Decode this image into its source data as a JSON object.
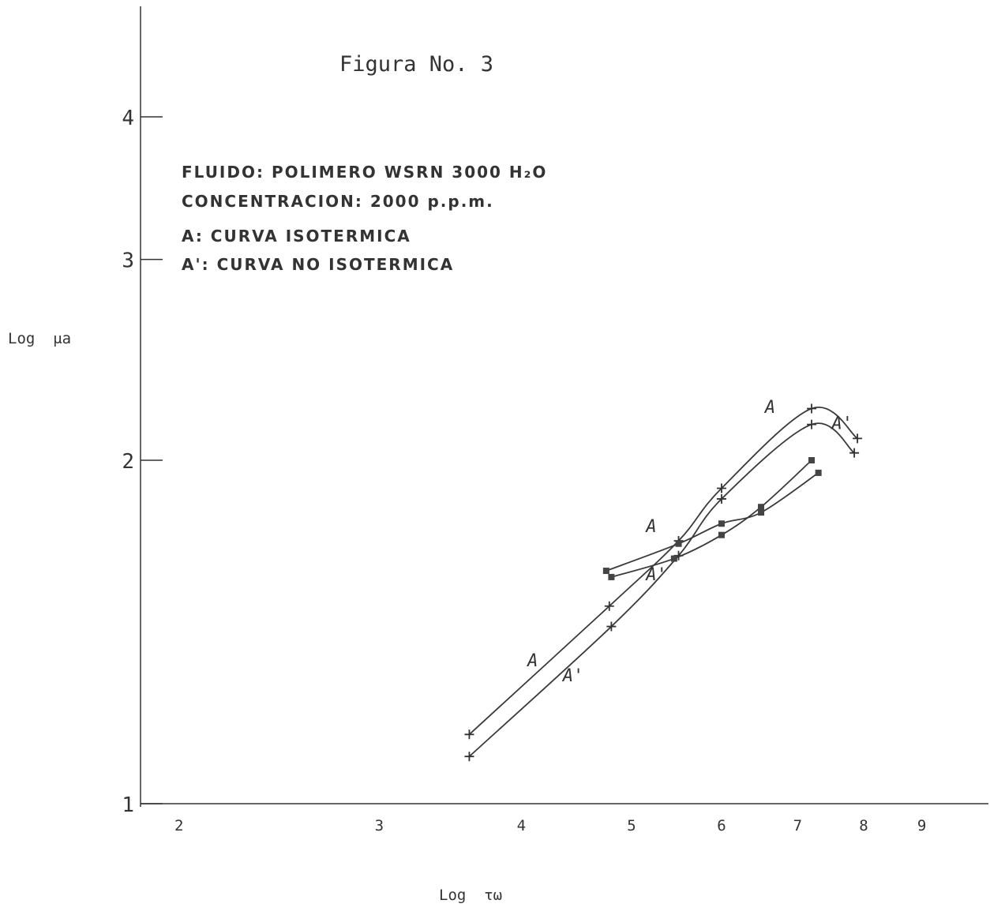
{
  "chart_data": {
    "type": "line",
    "title": "Figura No. 3",
    "notes": [
      "FLUIDO: POLIMERO  WSRN 3000 H₂O",
      "CONCENTRACION:  2000 p.p.m.",
      "A: CURVA  ISOTERMICA",
      "A': CURVA  NO ISOTERMICA"
    ],
    "xlabel": "Log  τω",
    "ylabel": "Log  μa",
    "x_scale": "log",
    "y_scale": "log",
    "xlim": [
      1.85,
      10.3
    ],
    "ylim": [
      1,
      5
    ],
    "x_ticks": [
      2,
      3,
      4,
      5,
      6,
      7,
      8,
      9
    ],
    "y_ticks": [
      1,
      2,
      3,
      4
    ],
    "grid": false,
    "series": [
      {
        "name": "A",
        "marker": "plus",
        "points": [
          [
            3.6,
            1.15
          ],
          [
            4.78,
            1.49
          ],
          [
            5.5,
            1.7
          ],
          [
            6.0,
            1.89
          ],
          [
            7.2,
            2.22
          ],
          [
            7.9,
            2.09
          ]
        ]
      },
      {
        "name": "A'",
        "marker": "plus",
        "points": [
          [
            3.6,
            1.1
          ],
          [
            4.8,
            1.43
          ],
          [
            5.5,
            1.65
          ],
          [
            6.0,
            1.85
          ],
          [
            7.2,
            2.15
          ],
          [
            7.85,
            2.03
          ]
        ]
      },
      {
        "name": "A",
        "marker": "square",
        "points": [
          [
            4.75,
            1.6
          ],
          [
            5.5,
            1.69
          ],
          [
            6.0,
            1.76
          ],
          [
            6.5,
            1.8
          ],
          [
            7.3,
            1.95
          ]
        ]
      },
      {
        "name": "A'",
        "marker": "square",
        "points": [
          [
            4.8,
            1.58
          ],
          [
            5.45,
            1.64
          ],
          [
            6.0,
            1.72
          ],
          [
            6.5,
            1.82
          ],
          [
            7.2,
            2.0
          ]
        ]
      }
    ],
    "curve_labels": [
      {
        "text": "A",
        "x": 4.05,
        "y": 1.32
      },
      {
        "text": "A'",
        "x": 4.35,
        "y": 1.28
      },
      {
        "text": "A",
        "x": 5.15,
        "y": 1.73
      },
      {
        "text": "A'",
        "x": 5.15,
        "y": 1.57
      },
      {
        "text": "A",
        "x": 6.55,
        "y": 2.2
      },
      {
        "text": "A'",
        "x": 7.5,
        "y": 2.13
      }
    ]
  }
}
